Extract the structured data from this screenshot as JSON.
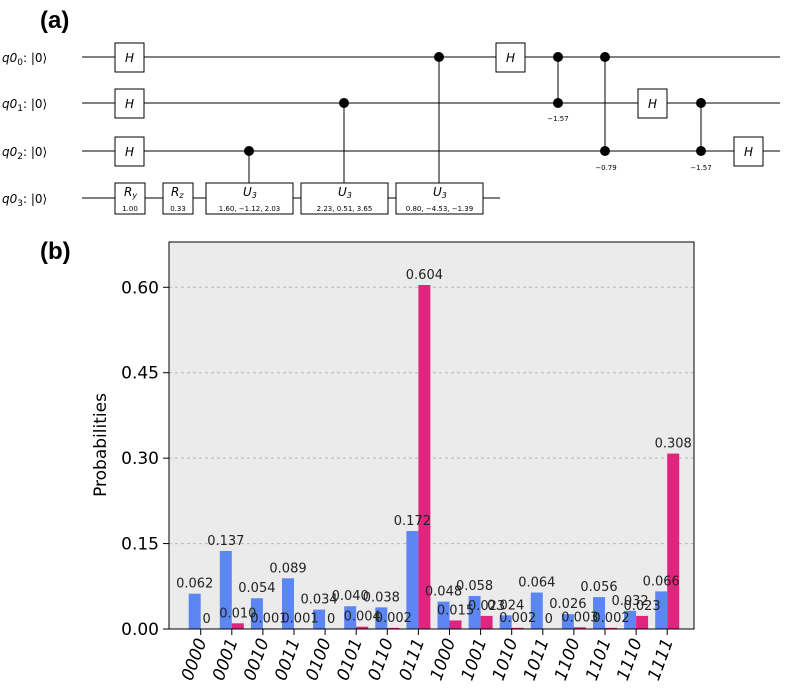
{
  "panel_a": {
    "label": "(a)",
    "qubits": [
      {
        "name": "q0",
        "sub": "0",
        "state": ": |0⟩"
      },
      {
        "name": "q0",
        "sub": "1",
        "state": ": |0⟩"
      },
      {
        "name": "q0",
        "sub": "2",
        "state": ": |0⟩"
      },
      {
        "name": "q0",
        "sub": "3",
        "state": ": |0⟩"
      }
    ],
    "gates": {
      "h": "H",
      "ry": {
        "base": "R",
        "sub": "y",
        "param": "1.00"
      },
      "rz": {
        "base": "R",
        "sub": "z",
        "param": "0.33"
      },
      "u3_1": {
        "base": "U",
        "sub": "3",
        "param": "1.60, −1.12, 2.03"
      },
      "u3_2": {
        "base": "U",
        "sub": "3",
        "param": "2.23, 0.51, 3.65"
      },
      "u3_3": {
        "base": "U",
        "sub": "3",
        "param": "0.80, −4.53, −1.39"
      }
    },
    "phases": {
      "cp_01": "−1.57",
      "cp_02": "−0.79",
      "cp_12": "−1.57"
    }
  },
  "panel_b": {
    "label": "(b)"
  },
  "chart_data": {
    "type": "bar",
    "title": "",
    "xlabel": "",
    "ylabel": "Probabilities",
    "ylim": [
      0,
      0.6795
    ],
    "yticks": [
      0.0,
      0.15,
      0.3,
      0.45,
      0.6
    ],
    "ytick_labels": [
      "0.00",
      "0.15",
      "0.30",
      "0.45",
      "0.60"
    ],
    "grid": "horizontal dashed",
    "categories": [
      "0000",
      "0001",
      "0010",
      "0011",
      "0100",
      "0101",
      "0110",
      "0111",
      "1000",
      "1001",
      "1010",
      "1011",
      "1100",
      "1101",
      "1110",
      "1111"
    ],
    "series": [
      {
        "name": "blue",
        "color": "#5B86F3",
        "values": [
          0.062,
          0.137,
          0.054,
          0.089,
          0.034,
          0.04,
          0.038,
          0.172,
          0.048,
          0.058,
          0.024,
          0.064,
          0.026,
          0.056,
          0.032,
          0.066
        ],
        "labels": [
          "0.062",
          "0.137",
          "0.054",
          "0.089",
          "0.034",
          "0.040",
          "0.038",
          "0.172",
          "0.048",
          "0.058",
          "0.024",
          "0.064",
          "0.026",
          "0.056",
          "0.032",
          "0.066"
        ]
      },
      {
        "name": "magenta",
        "color": "#E0257E",
        "values": [
          0,
          0.01,
          0.001,
          0.001,
          0,
          0.004,
          0.002,
          0.604,
          0.015,
          0.023,
          0.002,
          0,
          0.003,
          0.002,
          0.023,
          0.308
        ],
        "labels": [
          "0",
          "0.010",
          "0.001",
          "0.001",
          "0",
          "0.004",
          "0.002",
          "0.604",
          "0.015",
          "0.023",
          "0.002",
          "0",
          "0.003",
          "0.002",
          "0.023",
          "0.308"
        ]
      }
    ],
    "colors": {
      "blue": "#5B86F3",
      "magenta": "#E0257E",
      "background": "#EBEBEB",
      "grid": "#B8B8B8"
    }
  }
}
